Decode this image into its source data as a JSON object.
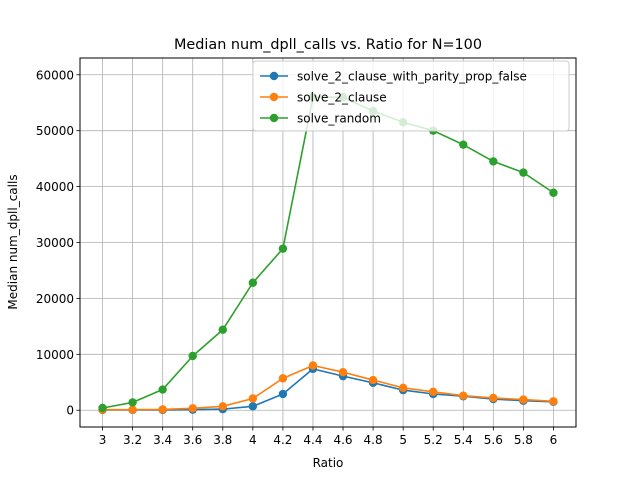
{
  "chart_data": {
    "type": "line",
    "title": "Median num_dpll_calls vs. Ratio for N=100",
    "xlabel": "Ratio",
    "ylabel": "Median num_dpll_calls",
    "x": [
      3,
      3.2,
      3.4,
      3.6,
      3.8,
      4,
      4.2,
      4.4,
      4.6,
      4.8,
      5,
      5.2,
      5.4,
      5.6,
      5.8,
      6
    ],
    "x_tick_labels": [
      "3",
      "3.2",
      "3.4",
      "3.6",
      "3.8",
      "4",
      "4.2",
      "4.4",
      "4.6",
      "4.8",
      "5",
      "5.2",
      "5.4",
      "5.6",
      "5.8",
      "6"
    ],
    "xlim": [
      2.85,
      6.15
    ],
    "ylim": [
      -3000,
      63000
    ],
    "y_ticks": [
      0,
      10000,
      20000,
      30000,
      40000,
      50000,
      60000
    ],
    "y_tick_labels": [
      "0",
      "10000",
      "20000",
      "30000",
      "40000",
      "50000",
      "60000"
    ],
    "grid": true,
    "legend_position": "top-right",
    "series": [
      {
        "name": "solve_2_clause_with_parity_prop_false",
        "color": "#1f77b4",
        "values": [
          50,
          50,
          50,
          100,
          200,
          700,
          2900,
          7400,
          6100,
          4900,
          3600,
          2900,
          2500,
          2000,
          1700,
          1500
        ]
      },
      {
        "name": "solve_2_clause",
        "color": "#ff7f0e",
        "values": [
          100,
          100,
          150,
          350,
          700,
          2100,
          5700,
          8000,
          6800,
          5400,
          4000,
          3300,
          2600,
          2200,
          1900,
          1600
        ]
      },
      {
        "name": "solve_random",
        "color": "#2ca02c",
        "values": [
          400,
          1400,
          3700,
          9700,
          14400,
          22800,
          28900,
          56000,
          56000,
          53500,
          51500,
          50000,
          47500,
          44500,
          42500,
          38900
        ]
      }
    ]
  }
}
